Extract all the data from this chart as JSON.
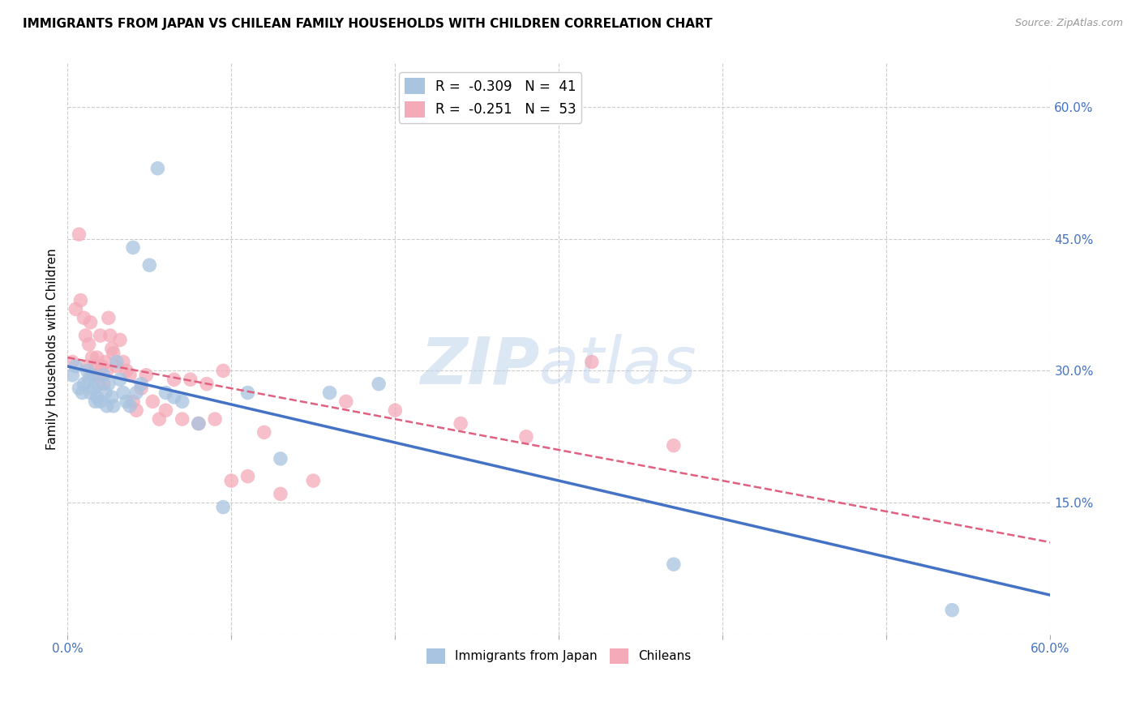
{
  "title": "IMMIGRANTS FROM JAPAN VS CHILEAN FAMILY HOUSEHOLDS WITH CHILDREN CORRELATION CHART",
  "source": "Source: ZipAtlas.com",
  "ylabel": "Family Households with Children",
  "xlim": [
    0.0,
    0.6
  ],
  "ylim": [
    0.0,
    0.65
  ],
  "yticks_right": [
    0.0,
    0.15,
    0.3,
    0.45,
    0.6
  ],
  "ytick_labels_right": [
    "",
    "15.0%",
    "30.0%",
    "45.0%",
    "60.0%"
  ],
  "xtick_positions": [
    0.0,
    0.1,
    0.2,
    0.3,
    0.4,
    0.5,
    0.6
  ],
  "xtick_labels": [
    "0.0%",
    "",
    "",
    "",
    "",
    "",
    "60.0%"
  ],
  "legend_label1": "Immigrants from Japan",
  "legend_label2": "Chileans",
  "watermark_zip": "ZIP",
  "watermark_atlas": "atlas",
  "japan_R": -0.309,
  "japan_N": 41,
  "chile_R": -0.251,
  "chile_N": 53,
  "japan_color": "#a8c4e0",
  "chile_color": "#f4aab8",
  "japan_line_color": "#4472c4",
  "chile_line_color": "#e06080",
  "japan_scatter_x": [
    0.003,
    0.005,
    0.007,
    0.009,
    0.01,
    0.012,
    0.013,
    0.014,
    0.015,
    0.016,
    0.017,
    0.018,
    0.019,
    0.02,
    0.022,
    0.023,
    0.024,
    0.025,
    0.027,
    0.028,
    0.03,
    0.032,
    0.034,
    0.036,
    0.038,
    0.04,
    0.042,
    0.045,
    0.05,
    0.055,
    0.06,
    0.065,
    0.07,
    0.08,
    0.095,
    0.11,
    0.13,
    0.16,
    0.19,
    0.37,
    0.54
  ],
  "japan_scatter_y": [
    0.295,
    0.305,
    0.28,
    0.275,
    0.285,
    0.3,
    0.29,
    0.275,
    0.295,
    0.28,
    0.265,
    0.27,
    0.285,
    0.265,
    0.295,
    0.275,
    0.26,
    0.285,
    0.27,
    0.26,
    0.31,
    0.29,
    0.275,
    0.265,
    0.26,
    0.44,
    0.275,
    0.285,
    0.42,
    0.53,
    0.275,
    0.27,
    0.265,
    0.24,
    0.145,
    0.275,
    0.2,
    0.275,
    0.285,
    0.08,
    0.028
  ],
  "chile_scatter_x": [
    0.003,
    0.005,
    0.007,
    0.008,
    0.01,
    0.011,
    0.012,
    0.013,
    0.014,
    0.015,
    0.016,
    0.017,
    0.018,
    0.019,
    0.02,
    0.021,
    0.022,
    0.023,
    0.024,
    0.025,
    0.026,
    0.027,
    0.028,
    0.03,
    0.032,
    0.034,
    0.036,
    0.038,
    0.04,
    0.042,
    0.045,
    0.048,
    0.052,
    0.056,
    0.06,
    0.065,
    0.07,
    0.075,
    0.08,
    0.085,
    0.09,
    0.095,
    0.1,
    0.11,
    0.12,
    0.13,
    0.15,
    0.17,
    0.2,
    0.24,
    0.28,
    0.32,
    0.37
  ],
  "chile_scatter_y": [
    0.31,
    0.37,
    0.455,
    0.38,
    0.36,
    0.34,
    0.305,
    0.33,
    0.355,
    0.315,
    0.295,
    0.305,
    0.315,
    0.295,
    0.34,
    0.305,
    0.285,
    0.31,
    0.3,
    0.36,
    0.34,
    0.325,
    0.32,
    0.305,
    0.335,
    0.31,
    0.3,
    0.295,
    0.265,
    0.255,
    0.28,
    0.295,
    0.265,
    0.245,
    0.255,
    0.29,
    0.245,
    0.29,
    0.24,
    0.285,
    0.245,
    0.3,
    0.175,
    0.18,
    0.23,
    0.16,
    0.175,
    0.265,
    0.255,
    0.24,
    0.225,
    0.31,
    0.215
  ],
  "background_color": "#ffffff",
  "grid_color": "#cccccc",
  "axis_label_color": "#4472c4",
  "title_fontsize": 11,
  "source_fontsize": 9,
  "tick_fontsize": 11,
  "ylabel_fontsize": 11
}
